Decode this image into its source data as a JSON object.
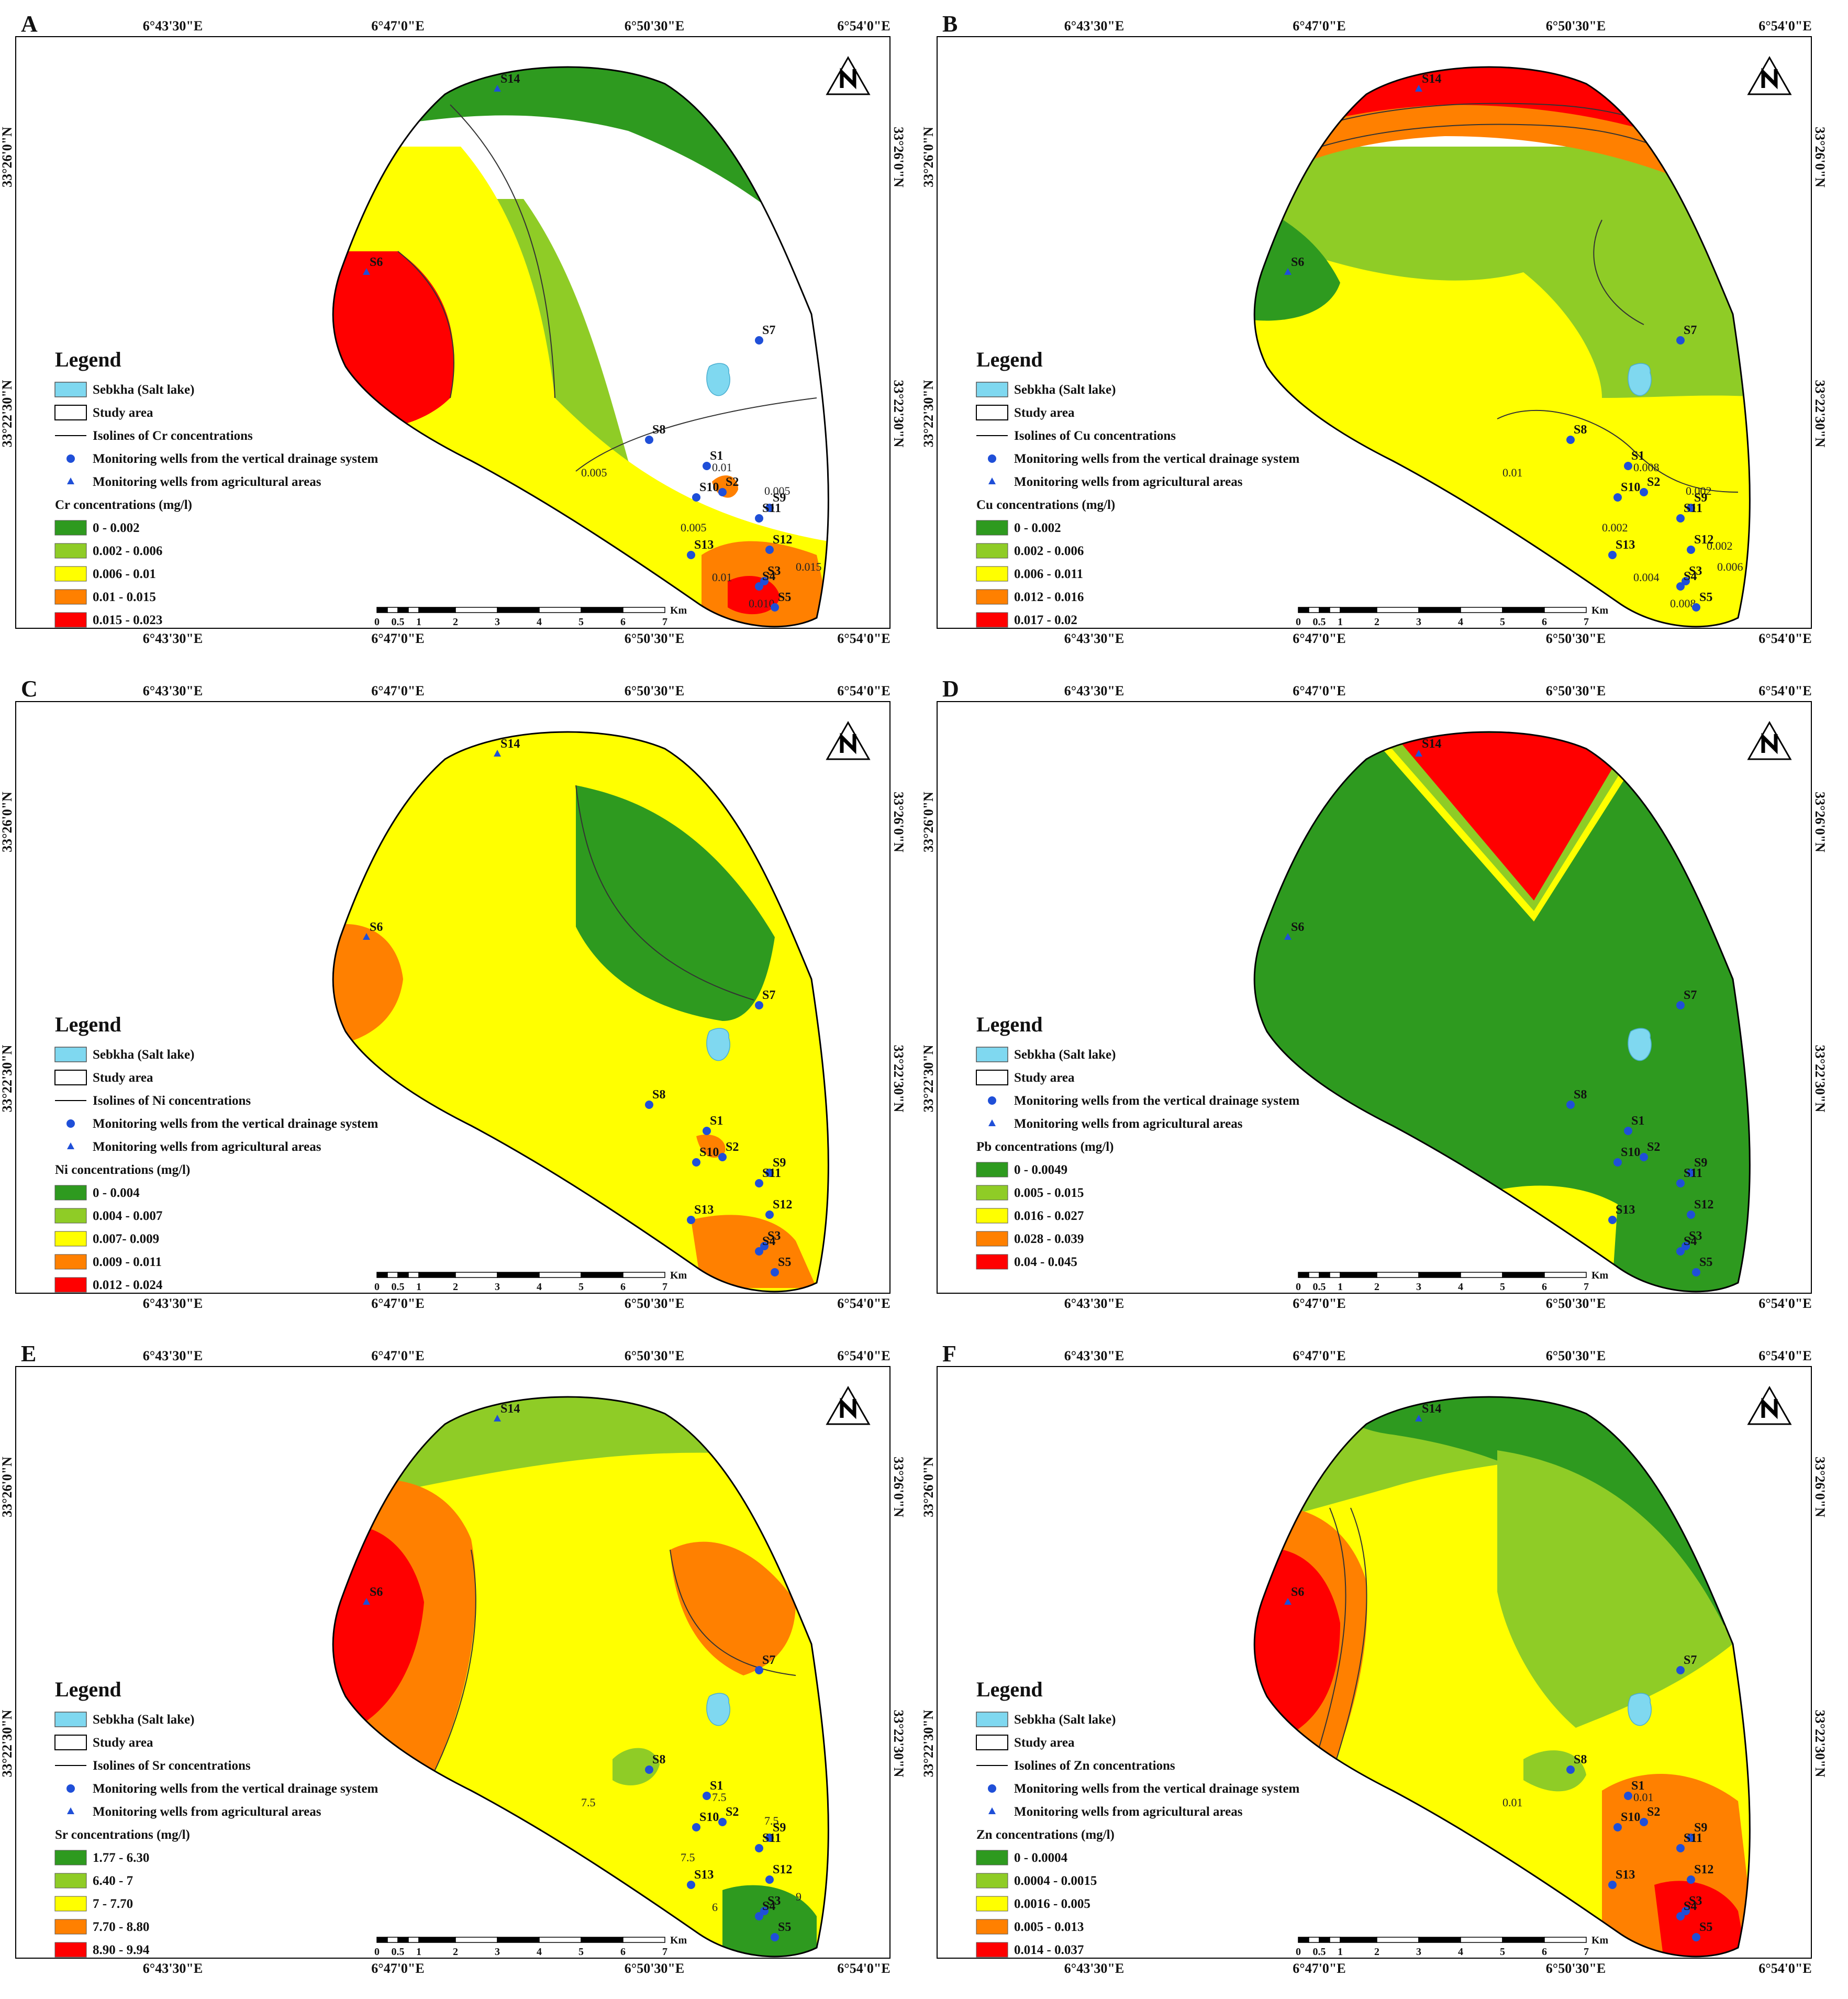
{
  "legend_common": {
    "title": "Legend",
    "sebkha": "Sebkha (Salt lake)",
    "study_area": "Study area",
    "wells_vertical": "Monitoring wells from the vertical drainage system",
    "wells_agri": "Monitoring wells from agricultural areas"
  },
  "axes": {
    "lon_labels": [
      "6°43'30\"E",
      "6°47'0\"E",
      "6°50'30\"E",
      "6°54'0\"E"
    ],
    "lat_labels": [
      "33°26'0\"N",
      "33°22'30\"N"
    ]
  },
  "scalebar": {
    "ticks": [
      "0",
      "0.5",
      "1",
      "2",
      "3",
      "4",
      "5",
      "6",
      "7"
    ],
    "unit": "Km"
  },
  "colors": {
    "c1": "#2e9a1f",
    "c2": "#8fcc26",
    "c3": "#ffff00",
    "c4": "#ff8000",
    "c5": "#ff0000",
    "sebkha": "#7fd8f0",
    "well": "#1f4fd8"
  },
  "panels": [
    {
      "letter": "A",
      "iso_label": "Isolines of Cr concentrations",
      "class_title": "Cr concentrations (mg/l)",
      "classes": [
        "0 - 0.002",
        "0.002 - 0.006",
        "0.006 - 0.01",
        "0.01 - 0.015",
        "0.015 - 0.023"
      ],
      "isoline_values": [
        "0.005",
        "0.01",
        "0.005",
        "0.005",
        "0.01",
        "0.015",
        "0.010"
      ]
    },
    {
      "letter": "B",
      "iso_label": "Isolines of Cu concentrations",
      "class_title": "Cu concentrations (mg/l)",
      "classes": [
        "0 - 0.002",
        "0.002 - 0.006",
        "0.006 - 0.011",
        "0.012 - 0.016",
        "0.017 - 0.02"
      ],
      "isoline_values": [
        "0.01",
        "0.008",
        "0.002",
        "0.002",
        "0.004",
        "0.006",
        "0.008",
        "0.002"
      ]
    },
    {
      "letter": "C",
      "iso_label": "Isolines of Ni concentrations",
      "class_title": "Ni concentrations (mg/l)",
      "classes": [
        "0 - 0.004",
        "0.004 - 0.007",
        "0.007- 0.009",
        "0.009 - 0.011",
        "0.012 - 0.024"
      ],
      "isoline_values": []
    },
    {
      "letter": "D",
      "iso_label": "",
      "class_title": "Pb concentrations (mg/l)",
      "classes": [
        "0 - 0.0049",
        "0.005 - 0.015",
        "0.016 - 0.027",
        "0.028 - 0.039",
        "0.04 - 0.045"
      ],
      "isoline_values": []
    },
    {
      "letter": "E",
      "iso_label": "Isolines of Sr concentrations",
      "class_title": "Sr concentrations (mg/l)",
      "classes": [
        "1.77 - 6.30",
        "6.40 - 7",
        "7 - 7.70",
        "7.70 - 8.80",
        "8.90 - 9.94"
      ],
      "isoline_values": [
        "7.5",
        "7.5",
        "7.5",
        "7.5",
        "6",
        "9"
      ]
    },
    {
      "letter": "F",
      "iso_label": "Isolines of Zn concentrations",
      "class_title": "Zn concentrations (mg/l)",
      "classes": [
        "0 - 0.0004",
        "0.0004 - 0.0015",
        "0.0016 - 0.005",
        "0.005 - 0.013",
        "0.014 - 0.037"
      ],
      "isoline_values": [
        "0.01",
        "0.01"
      ]
    }
  ],
  "wells": [
    "S1",
    "S2",
    "S3",
    "S4",
    "S5",
    "S6",
    "S7",
    "S8",
    "S9",
    "S10",
    "S11",
    "S12",
    "S13",
    "S14"
  ]
}
